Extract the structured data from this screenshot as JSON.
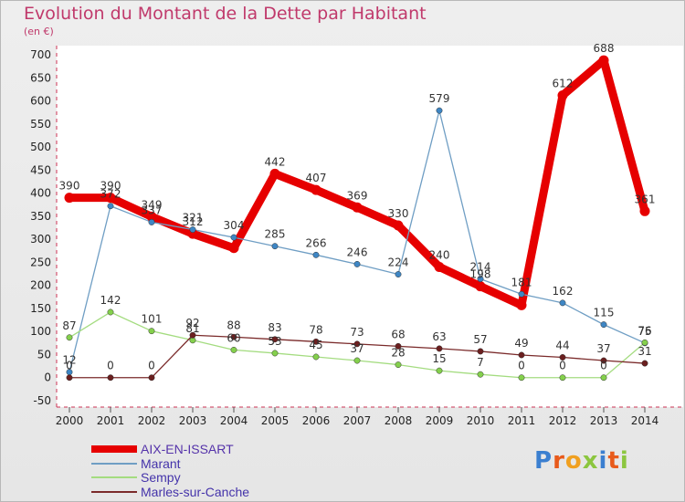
{
  "title": "Evolution du Montant de la Dette par Habitant",
  "unit": "(en €)",
  "logo": "Proxiti",
  "chart_data": {
    "type": "line",
    "title": "Evolution du Montant de la Dette par Habitant",
    "ylabel": "(en €)",
    "x": [
      "2000",
      "2001",
      "2002",
      "2003",
      "2004",
      "2005",
      "2006",
      "2007",
      "2008",
      "2009",
      "2010",
      "2011",
      "2012",
      "2013",
      "2014"
    ],
    "yticks": [
      -50,
      0,
      50,
      100,
      150,
      200,
      250,
      300,
      350,
      400,
      450,
      500,
      550,
      600,
      650,
      700
    ],
    "ylim": [
      -50,
      700
    ],
    "grid": false,
    "legend_position": "bottom-left",
    "series": [
      {
        "name": "AIX-EN-ISSART",
        "color": "#e60000",
        "width": 9,
        "marker_color": "#e60000",
        "values": [
          390,
          390,
          349,
          312,
          281,
          442,
          407,
          369,
          330,
          240,
          198,
          157,
          612,
          688,
          361
        ],
        "labels": [
          "390",
          "390",
          "349",
          "312",
          "",
          "442",
          "407",
          "369",
          "330",
          "240",
          "198",
          "",
          "612",
          "688",
          "361"
        ]
      },
      {
        "name": "Marant",
        "color": "#6f9ec4",
        "width": 1.3,
        "marker_color": "#3e86c4",
        "values": [
          12,
          372,
          337,
          321,
          304,
          285,
          266,
          246,
          224,
          579,
          214,
          181,
          162,
          115,
          75
        ],
        "labels": [
          "12",
          "372",
          "337",
          "321",
          "304",
          "285",
          "266",
          "246",
          "224",
          "579",
          "214",
          "181",
          "162",
          "115",
          "75"
        ]
      },
      {
        "name": "Sempy",
        "color": "#a4dc80",
        "width": 1.3,
        "marker_color": "#84d04c",
        "values": [
          87,
          142,
          101,
          81,
          60,
          53,
          45,
          37,
          28,
          15,
          7,
          0,
          0,
          0,
          76
        ],
        "labels": [
          "87",
          "142",
          "101",
          "81",
          "60",
          "53",
          "45",
          "37",
          "28",
          "15",
          "7",
          "0",
          "0",
          "0",
          "76"
        ]
      },
      {
        "name": "Marles-sur-Canche",
        "color": "#7a2a2a",
        "width": 1.3,
        "marker_color": "#6b1f1f",
        "values": [
          0,
          0,
          0,
          92,
          88,
          83,
          78,
          73,
          68,
          63,
          57,
          49,
          44,
          37,
          31
        ],
        "labels": [
          "0",
          "0",
          "0",
          "92",
          "88",
          "83",
          "78",
          "73",
          "68",
          "63",
          "57",
          "49",
          "44",
          "37",
          "31"
        ]
      }
    ]
  }
}
